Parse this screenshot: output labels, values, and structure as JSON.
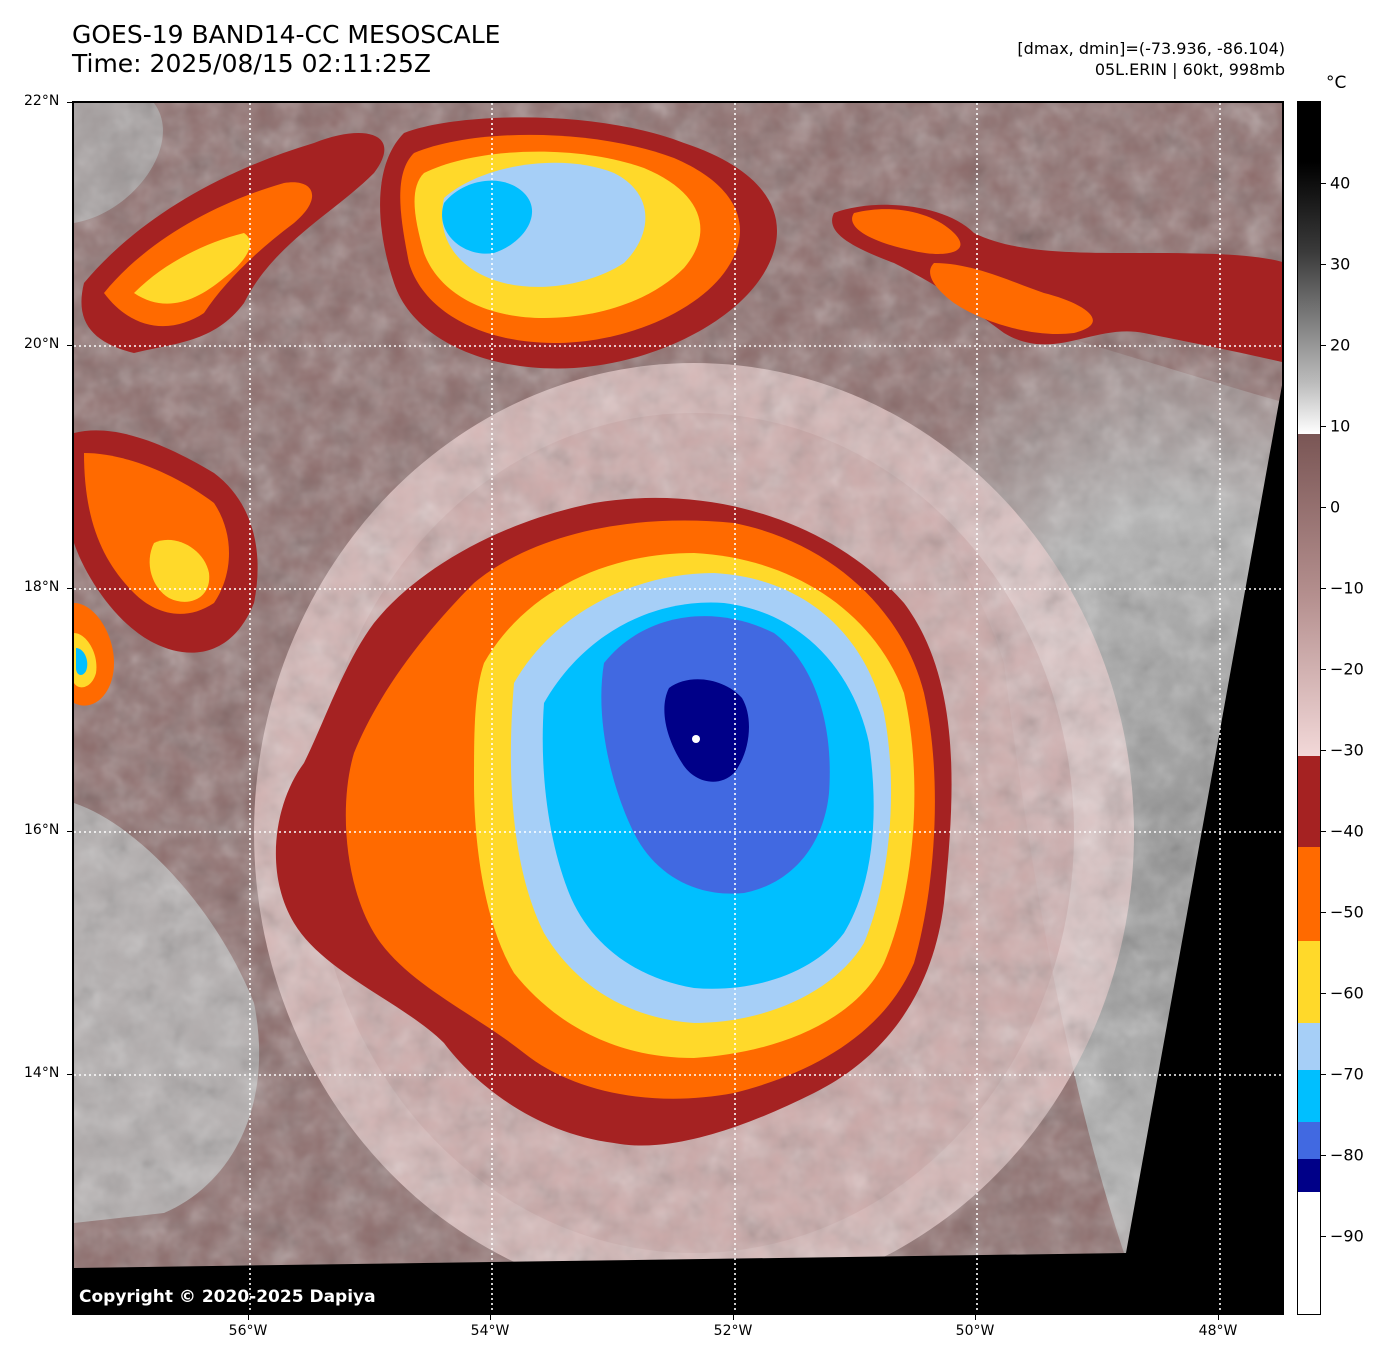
{
  "header": {
    "title": "GOES-19 BAND14-CC MESOSCALE",
    "time": "Time: 2025/08/15 02:11:25Z",
    "range": "[dmax, dmin]=(-73.936, -86.104)",
    "storm": "05L.ERIN | 60kt, 998mb"
  },
  "map": {
    "copyright": "Copyright © 2020-2025 Dapiya",
    "lat_labels": [
      "22°N",
      "20°N",
      "18°N",
      "16°N",
      "14°N"
    ],
    "lon_labels": [
      "56°W",
      "54°W",
      "52°W",
      "50°W",
      "48°W"
    ],
    "colors": {
      "background_cloud": "#8a6a69",
      "warm_gray": "#9a9a9a",
      "light_gray": "#d2d2d2",
      "pink": "#f0d2d2",
      "dark_red": "#a52222",
      "orange": "#ff6a00",
      "yellow": "#ffd92a",
      "light_blue": "#a6cff7",
      "sky_blue": "#00bfff",
      "royal_blue": "#4169e1",
      "navy": "#000088",
      "no_data": "#000000"
    }
  },
  "colorbar": {
    "unit": "°C",
    "ticks": [
      "40",
      "30",
      "20",
      "10",
      "0",
      "−10",
      "−20",
      "−30",
      "−40",
      "−50",
      "−60",
      "−70",
      "−80",
      "−90"
    ]
  }
}
